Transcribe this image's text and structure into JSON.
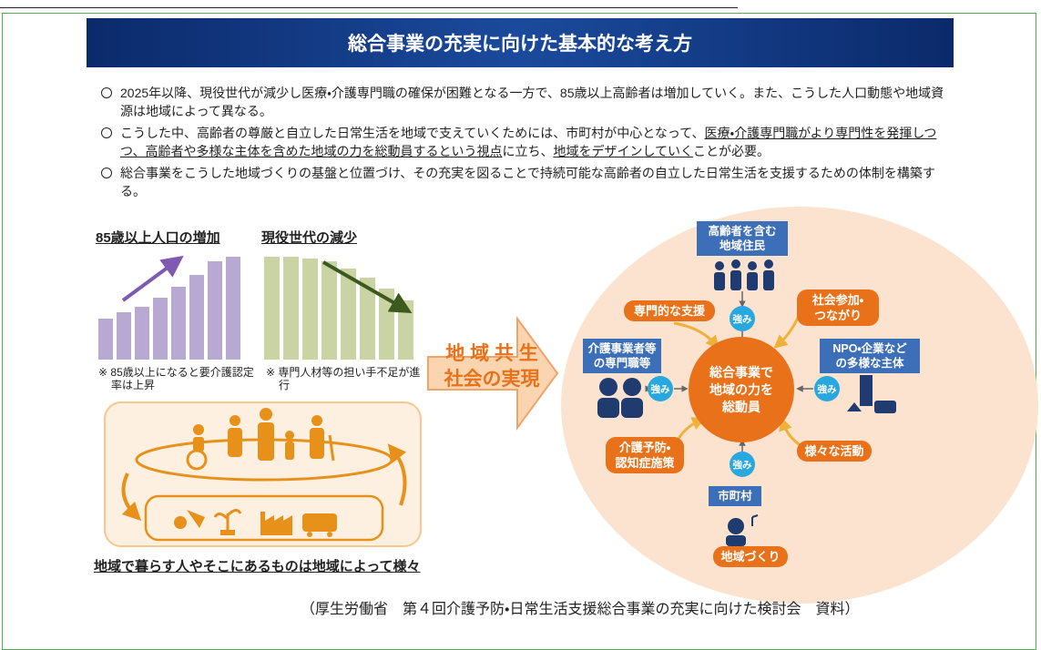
{
  "banner": {
    "title": "総合事業の充実に向けた基本的な考え方"
  },
  "bullets": [
    [
      "2025年以降、現役世代が減少し医療・介護専門職の確保が困難となる一方で、85歳以上高齢者は増加していく。また、こうした人口動態や地域資源は地域によって異なる。"
    ],
    [
      "こうした中、高齢者の尊厳と自立した日常生活を地域で支えていくためには、市町村が中心となって、",
      "医療・介護専門職がより専門性を発揮しつつ、高齢者や多様な主体を含めた地域の力を総動員するという視点",
      "に立ち、",
      "地域をデザインしていく",
      "ことが必要。"
    ],
    [
      "総合事業をこうした地域づくりの基盤と位置づけ、その充実を図ることで持続可能な高齢者の自立した日常生活を支援するための体制を構築する。"
    ]
  ],
  "left": {
    "growth": {
      "title": "85歳以上人口の増加",
      "note": "※ 85歳以上になると要介護認定率は上昇"
    },
    "decline": {
      "title": "現役世代の減少",
      "note": "※ 専門人材等の担い手不足が進行"
    },
    "caption": "地域で暮らす人やそこにあるものは地域によって様々"
  },
  "arrow": {
    "lines": [
      "地 域 共 生",
      "社会の実現"
    ]
  },
  "circle": {
    "center": {
      "lines": [
        "総合事業で",
        "地域の力を",
        "総動員"
      ]
    },
    "residents": {
      "lines": [
        "高齢者を含む",
        "地域住民"
      ]
    },
    "professionals": {
      "lines": [
        "介護事業者等",
        "の専門職等"
      ]
    },
    "npo": {
      "lines": [
        "NPO・企業など",
        "の多様な主体"
      ]
    },
    "municipality": "市町村",
    "support": "専門的な支援",
    "participation": {
      "lines": [
        "社会参加・",
        "つながり"
      ]
    },
    "activities": "様々な活動",
    "prevention": {
      "lines": [
        "介護予防・",
        "認知症施策"
      ]
    },
    "community": "地域づくり",
    "strengths": [
      "強み",
      "強み",
      "強み",
      "強み"
    ]
  },
  "source": "（厚生労働省　第４回介護予防・日常生活支援総合事業の充実に向けた検討会　資料）"
}
